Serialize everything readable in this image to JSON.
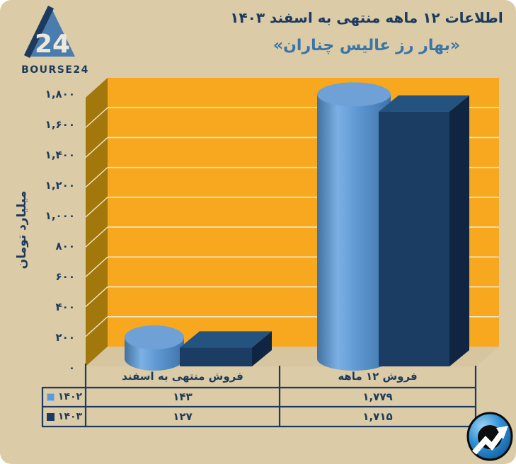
{
  "header": {
    "title": "اطلاعات ۱۲ ماهه منتهی به اسفند ۱۴۰۳",
    "subtitle": "«بهار رز عالیس چناران»",
    "brand": "BOURSE24",
    "logo_number": "24"
  },
  "chart_data": {
    "type": "bar",
    "style": "3d",
    "unit_label": "میلیارد تومان",
    "categories": [
      "فروش منتهی به اسفند",
      "فروش ۱۲ ماهه"
    ],
    "series": [
      {
        "name": "۱۴۰۲",
        "shape": "cylinder",
        "color": "#5B9BD5",
        "values": [
          143,
          1779
        ],
        "values_fa": [
          "۱۴۳",
          "۱,۷۷۹"
        ]
      },
      {
        "name": "۱۴۰۳",
        "shape": "box",
        "color": "#1B3C63",
        "values": [
          127,
          1715
        ],
        "values_fa": [
          "۱۲۷",
          "۱,۷۱۵"
        ]
      }
    ],
    "ylim": [
      0,
      1800
    ],
    "ytick_step": 200,
    "yticks_fa": [
      "۰",
      "۲۰۰",
      "۴۰۰",
      "۶۰۰",
      "۸۰۰",
      "۱,۰۰۰",
      "۱,۲۰۰",
      "۱,۴۰۰",
      "۱,۶۰۰",
      "۱,۸۰۰"
    ],
    "legend_position": "bottom-table-left",
    "plot_colors": {
      "back_wall": "#F8A81E",
      "side_wall": "#A2780C",
      "gridline": "#F6E7C2",
      "floor": "#D7C5A0",
      "axis_line": "#1C3A5E",
      "cylinder_top": "#6FA0D6",
      "box_top": "#24537F",
      "box_side": "#0F2542"
    }
  },
  "colors": {
    "card_background": "#DBCBA6",
    "title_navy": "#1C3A5E",
    "subtitle_blue": "#3A74A8"
  }
}
